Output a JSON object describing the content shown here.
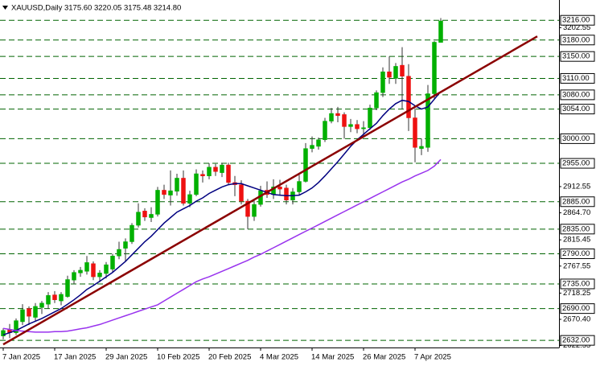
{
  "chart_data": {
    "type": "candlestick",
    "title": "XAUUSD,Daily  3175.60 3220.05 3175.48 3214.80",
    "categories": [
      "7 Jan 2025",
      null,
      null,
      null,
      null,
      null,
      null,
      null,
      "17 Jan 2025",
      null,
      null,
      null,
      null,
      null,
      null,
      null,
      "29 Jan 2025",
      null,
      null,
      null,
      null,
      null,
      null,
      null,
      "10 Feb 2025",
      null,
      null,
      null,
      null,
      null,
      null,
      null,
      "20 Feb 2025",
      null,
      null,
      null,
      null,
      null,
      null,
      null,
      "4 Mar 2025",
      null,
      null,
      null,
      null,
      null,
      null,
      null,
      "14 Mar 2025",
      null,
      null,
      null,
      null,
      null,
      null,
      null,
      "26 Mar 2025",
      null,
      null,
      null,
      null,
      null,
      null,
      null,
      "7 Apr 2025",
      null,
      null,
      null,
      null
    ],
    "open": [
      2640,
      2652,
      2646,
      2666,
      2690,
      2674,
      2692,
      2698,
      2715,
      2704,
      2712,
      2742,
      2755,
      2758,
      2772,
      2748,
      2754,
      2762,
      2786,
      2800,
      2812,
      2842,
      2868,
      2856,
      2862,
      2906,
      2897,
      2904,
      2928,
      2882,
      2898,
      2935,
      2932,
      2948,
      2938,
      2952,
      2920,
      2916,
      2886,
      2858,
      2880,
      2906,
      2898,
      2912,
      2910,
      2888,
      2903,
      2922,
      2982,
      2986,
      2998,
      3032,
      3046,
      3044,
      3022,
      3026,
      3018,
      3020,
      3056,
      3084,
      3122,
      3110,
      3134,
      3114,
      3038,
      2982,
      2984,
      3082,
      3175.6
    ],
    "high": [
      2654,
      2662,
      2672,
      2698,
      2694,
      2700,
      2704,
      2720,
      2722,
      2720,
      2750,
      2760,
      2766,
      2786,
      2776,
      2760,
      2775,
      2790,
      2812,
      2818,
      2846,
      2882,
      2873,
      2875,
      2912,
      2916,
      2942,
      2936,
      2942,
      2905,
      2944,
      2942,
      2955,
      2954,
      2956,
      2956,
      2932,
      2924,
      2890,
      2888,
      2914,
      2922,
      2926,
      2925,
      2916,
      2910,
      2934,
      2992,
      3004,
      3002,
      3038,
      3056,
      3058,
      3048,
      3036,
      3034,
      3032,
      3062,
      3088,
      3130,
      3150,
      3138,
      3167,
      3136,
      3055,
      3000,
      3098,
      3178,
      3220.05
    ],
    "low": [
      2634,
      2636,
      2642,
      2660,
      2660,
      2668,
      2680,
      2690,
      2700,
      2696,
      2710,
      2735,
      2748,
      2752,
      2742,
      2738,
      2745,
      2756,
      2780,
      2775,
      2808,
      2838,
      2850,
      2848,
      2858,
      2890,
      2878,
      2896,
      2878,
      2875,
      2895,
      2920,
      2926,
      2932,
      2930,
      2915,
      2895,
      2880,
      2835,
      2850,
      2876,
      2892,
      2890,
      2896,
      2880,
      2880,
      2896,
      2920,
      2975,
      2980,
      2994,
      3028,
      3030,
      3000,
      3012,
      3010,
      3004,
      3016,
      3052,
      3076,
      3100,
      3100,
      3054,
      3014,
      2957,
      2970,
      2976,
      3072,
      3175.48
    ],
    "close": [
      2650,
      2646,
      2668,
      2688,
      2676,
      2694,
      2700,
      2714,
      2706,
      2716,
      2743,
      2756,
      2760,
      2774,
      2748,
      2755,
      2770,
      2786,
      2798,
      2812,
      2842,
      2866,
      2857,
      2862,
      2906,
      2898,
      2905,
      2928,
      2882,
      2898,
      2936,
      2932,
      2948,
      2940,
      2952,
      2920,
      2916,
      2886,
      2858,
      2880,
      2905,
      2898,
      2912,
      2908,
      2888,
      2903,
      2922,
      2982,
      2988,
      2998,
      3032,
      3046,
      3042,
      3022,
      3026,
      3018,
      3020,
      3056,
      3084,
      3122,
      3112,
      3132,
      3114,
      3038,
      2984,
      2986,
      3082,
      3176,
      3214.8
    ],
    "up_color": "#00b000",
    "down_color": "#ee1111",
    "wick_color": "#333333",
    "moving_averages": [
      {
        "color": "#000080",
        "values": [
          2642,
          2646,
          2650,
          2656,
          2662,
          2667,
          2672,
          2678,
          2684,
          2690,
          2698,
          2706,
          2715,
          2725,
          2732,
          2740,
          2748,
          2756,
          2766,
          2776,
          2788,
          2800,
          2812,
          2822,
          2834,
          2846,
          2856,
          2866,
          2872,
          2878,
          2886,
          2892,
          2900,
          2906,
          2912,
          2916,
          2918,
          2918,
          2914,
          2910,
          2906,
          2902,
          2898,
          2897,
          2896,
          2896,
          2897,
          2903,
          2910,
          2920,
          2932,
          2945,
          2958,
          2972,
          2986,
          2998,
          3008,
          3018,
          3028,
          3042,
          3054,
          3064,
          3070,
          3068,
          3060,
          3054,
          3058,
          3072,
          3086
        ]
      },
      {
        "color": "#9933ee",
        "values": [
          2654,
          2652,
          2650,
          2649,
          2648,
          2647,
          2647,
          2647,
          2648,
          2648,
          2649,
          2651,
          2653,
          2655,
          2658,
          2661,
          2665,
          2669,
          2673,
          2677,
          2681,
          2685,
          2689,
          2693,
          2697,
          2704,
          2711,
          2718,
          2725,
          2732,
          2739,
          2744,
          2748,
          2753,
          2758,
          2763,
          2768,
          2773,
          2778,
          2784,
          2789,
          2795,
          2801,
          2807,
          2813,
          2819,
          2825,
          2831,
          2837,
          2843,
          2849,
          2855,
          2861,
          2867,
          2873,
          2879,
          2885,
          2891,
          2897,
          2903,
          2909,
          2915,
          2921,
          2926,
          2932,
          2937,
          2942,
          2950,
          2962
        ]
      }
    ],
    "trendline": {
      "color": "#8b0000",
      "x": [
        0,
        83
      ],
      "values": [
        2624.6,
        3186.7
      ]
    },
    "level_color": "#006400",
    "levels": [
      {
        "value": 3216,
        "label": "3216.00"
      },
      {
        "value": 3180,
        "label": "3180.00"
      },
      {
        "value": 3150,
        "label": "3150.00"
      },
      {
        "value": 3110,
        "label": "3110.00"
      },
      {
        "value": 3080,
        "label": "3080.00"
      },
      {
        "value": 3054,
        "label": "3054.00"
      },
      {
        "value": 3000,
        "label": "3000.00"
      },
      {
        "value": 2955,
        "label": "2955.00"
      },
      {
        "value": 2885,
        "label": "2885.00"
      },
      {
        "value": 2835,
        "label": "2835.00"
      },
      {
        "value": 2790,
        "label": "2790.00"
      },
      {
        "value": 2735,
        "label": "2735.00"
      },
      {
        "value": 2690,
        "label": "2690.00"
      },
      {
        "value": 2632,
        "label": "2632.00"
      }
    ],
    "ylim": [
      2619,
      3253
    ],
    "yticks": [
      {
        "value": 3202.55,
        "label": "3202.55"
      },
      {
        "value": 2912.55,
        "label": "2912.55"
      },
      {
        "value": 2864.7,
        "label": "2864.70"
      },
      {
        "value": 2815.45,
        "label": "2815.45"
      },
      {
        "value": 2767.55,
        "label": "2767.55"
      },
      {
        "value": 2718.25,
        "label": "2718.25"
      },
      {
        "value": 2670.4,
        "label": "2670.40"
      },
      {
        "value": 2622.55,
        "label": "2622.55"
      }
    ]
  }
}
